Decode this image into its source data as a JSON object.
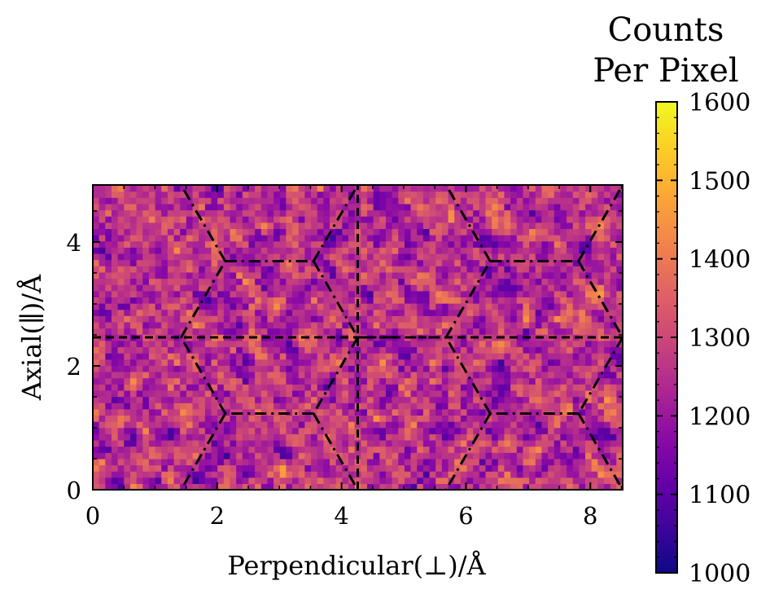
{
  "chart_data": {
    "type": "heatmap",
    "xlabel": "Perpendicular(⊥)/Å",
    "ylabel": "Axial(∥)/Å",
    "xlim": [
      0,
      8.52
    ],
    "ylim": [
      0,
      4.92
    ],
    "x_ticks": [
      0,
      2,
      4,
      6,
      8
    ],
    "y_ticks": [
      0,
      2,
      4
    ],
    "grid": false,
    "colormap": "plasma",
    "colorbar": {
      "title_lines": [
        "Counts",
        "Per Pixel"
      ],
      "min": 1000,
      "max": 1600,
      "ticks": [
        1000,
        1100,
        1200,
        1300,
        1400,
        1500,
        1600
      ]
    },
    "grid_size": [
      85,
      49
    ],
    "mean_value": 1260,
    "overlay": {
      "dashed_lines": [
        {
          "x": [
            0,
            8.52
          ],
          "y": [
            2.46,
            2.46
          ]
        },
        {
          "x": [
            4.26,
            4.26
          ],
          "y": [
            0,
            4.92
          ]
        }
      ],
      "hexagon_edges": [
        [
          [
            1.42,
            2.46
          ],
          [
            2.13,
            3.69
          ]
        ],
        [
          [
            2.13,
            3.69
          ],
          [
            3.55,
            3.69
          ]
        ],
        [
          [
            3.55,
            3.69
          ],
          [
            4.26,
            2.46
          ]
        ],
        [
          [
            4.26,
            2.46
          ],
          [
            3.55,
            1.23
          ]
        ],
        [
          [
            3.55,
            1.23
          ],
          [
            2.13,
            1.23
          ]
        ],
        [
          [
            2.13,
            1.23
          ],
          [
            1.42,
            2.46
          ]
        ],
        [
          [
            5.68,
            2.46
          ],
          [
            6.39,
            3.69
          ]
        ],
        [
          [
            6.39,
            3.69
          ],
          [
            7.81,
            3.69
          ]
        ],
        [
          [
            7.81,
            3.69
          ],
          [
            8.52,
            2.46
          ]
        ],
        [
          [
            8.52,
            2.46
          ],
          [
            7.81,
            1.23
          ]
        ],
        [
          [
            7.81,
            1.23
          ],
          [
            6.39,
            1.23
          ]
        ],
        [
          [
            6.39,
            1.23
          ],
          [
            5.68,
            2.46
          ]
        ],
        [
          [
            2.13,
            3.69
          ],
          [
            1.42,
            4.92
          ]
        ],
        [
          [
            3.55,
            3.69
          ],
          [
            4.26,
            4.92
          ]
        ],
        [
          [
            4.26,
            2.46
          ],
          [
            5.68,
            2.46
          ]
        ],
        [
          [
            6.39,
            3.69
          ],
          [
            5.68,
            4.92
          ]
        ],
        [
          [
            7.81,
            3.69
          ],
          [
            8.52,
            4.92
          ]
        ],
        [
          [
            2.13,
            1.23
          ],
          [
            1.42,
            0
          ]
        ],
        [
          [
            3.55,
            1.23
          ],
          [
            4.26,
            0
          ]
        ],
        [
          [
            6.39,
            1.23
          ],
          [
            5.68,
            0
          ]
        ],
        [
          [
            7.81,
            1.23
          ],
          [
            8.52,
            0
          ]
        ]
      ]
    }
  }
}
